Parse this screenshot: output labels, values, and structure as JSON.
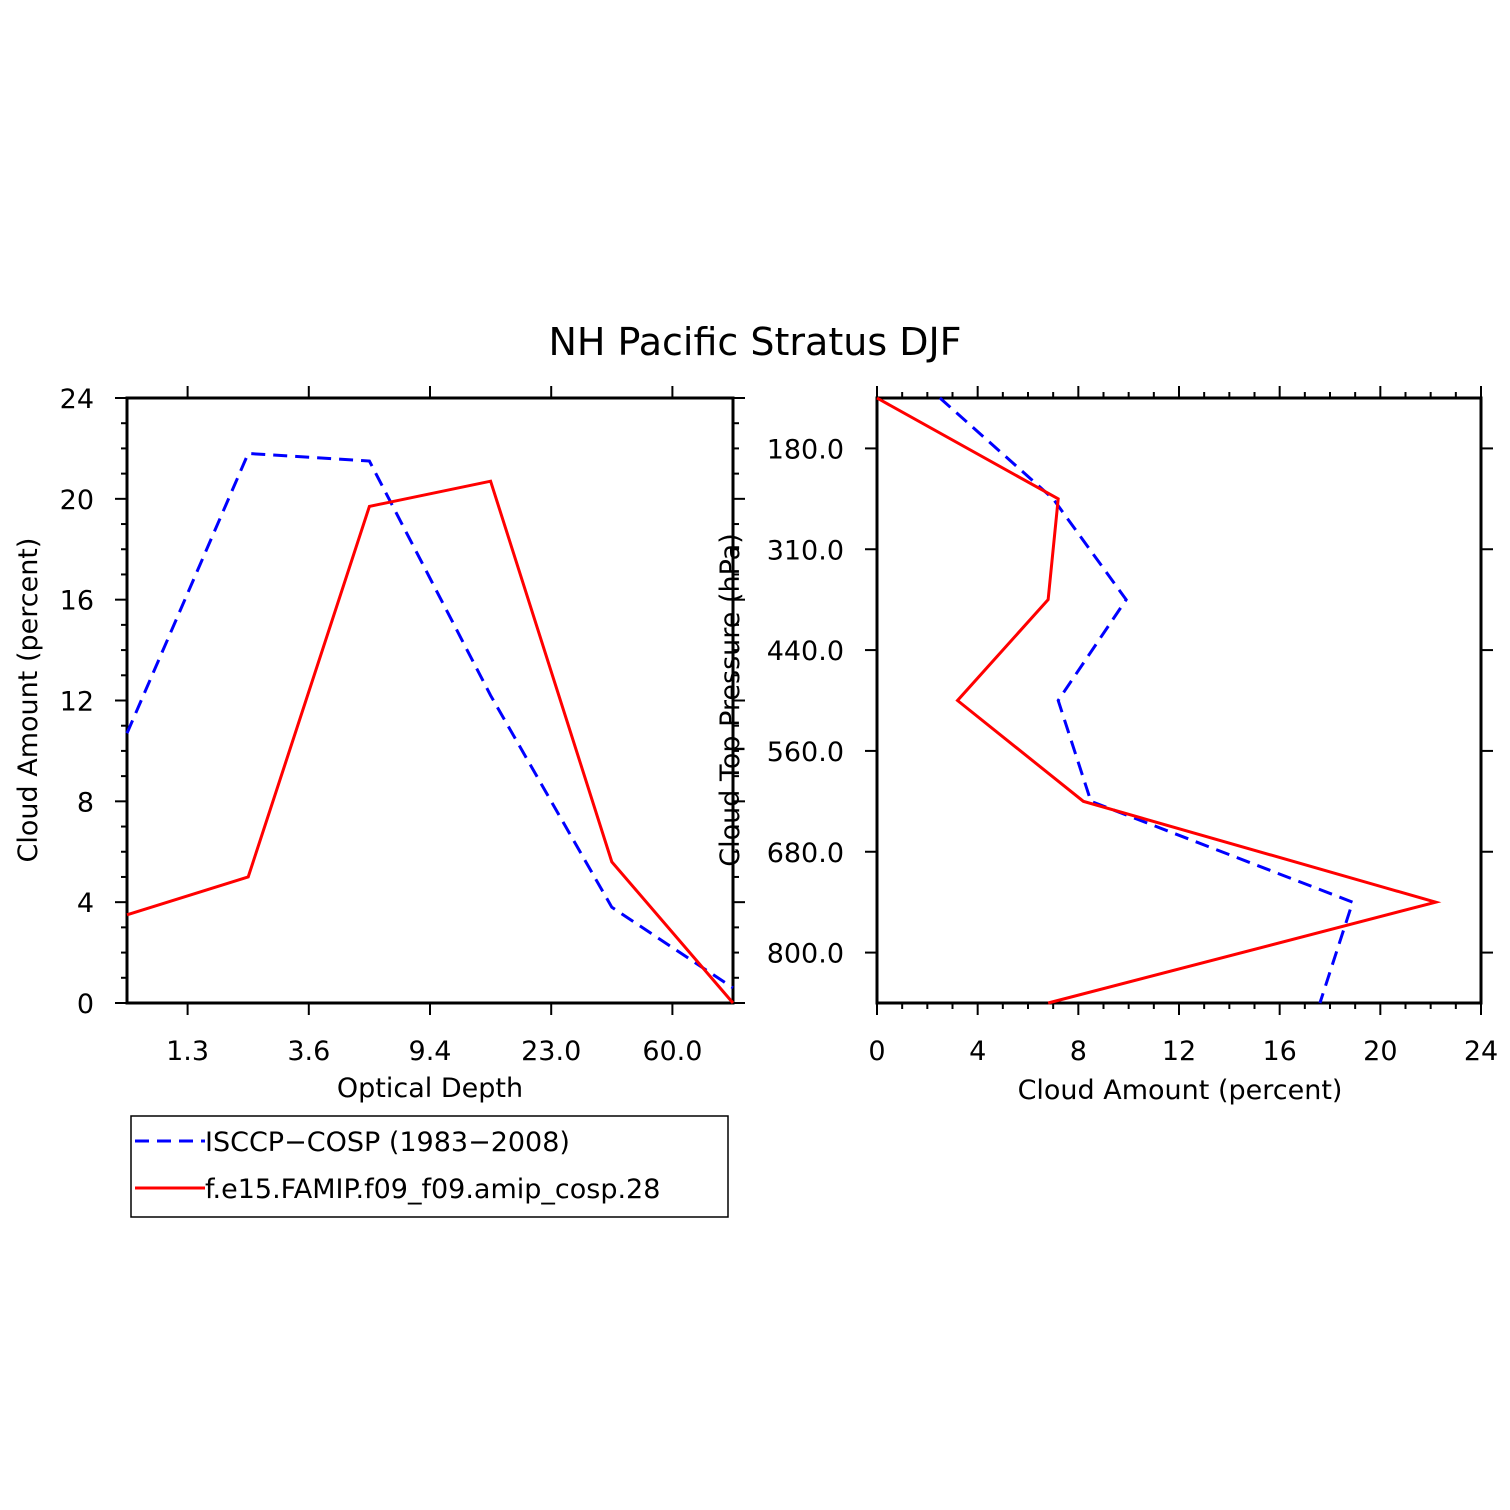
{
  "title": "NH Pacific Stratus DJF",
  "colors": {
    "isccp": "#0000ff",
    "model": "#ff0000",
    "axis": "#000000"
  },
  "legend": {
    "entries": [
      {
        "label": "ISCCP−COSP (1983−2008)",
        "style": "dashed",
        "color": "#0000ff"
      },
      {
        "label": "f.e15.FAMIP.f09_f09.amip_cosp.28",
        "style": "solid",
        "color": "#ff0000"
      }
    ]
  },
  "chart_data": [
    {
      "type": "line",
      "title": "",
      "xlabel": "Optical Depth",
      "ylabel": "Cloud Amount (percent)",
      "x_index": [
        0,
        1,
        2,
        3,
        4,
        5
      ],
      "xtick_labels": [
        "1.3",
        "3.6",
        "9.4",
        "23.0",
        "60.0"
      ],
      "ylim": [
        0,
        24
      ],
      "yticks": [
        0,
        4,
        8,
        12,
        16,
        20,
        24
      ],
      "series": [
        {
          "name": "ISCCP−COSP (1983−2008)",
          "style": "dashed",
          "values": [
            10.7,
            21.8,
            21.5,
            12.2,
            3.8,
            0.6
          ]
        },
        {
          "name": "f.e15.FAMIP.f09_f09.amip_cosp.28",
          "style": "solid",
          "values": [
            3.5,
            5.0,
            19.7,
            20.7,
            5.6,
            0.0
          ]
        }
      ]
    },
    {
      "type": "line",
      "title": "",
      "xlabel": "Cloud Amount (percent)",
      "ylabel": "Cloud Top Pressure (hPa)",
      "xlim": [
        0,
        24
      ],
      "xticks": [
        0,
        4,
        8,
        12,
        16,
        20,
        24
      ],
      "level_index": [
        0,
        1,
        2,
        3,
        4,
        5,
        6
      ],
      "ytick_labels": [
        "180.0",
        "310.0",
        "440.0",
        "560.0",
        "680.0",
        "800.0"
      ],
      "series": [
        {
          "name": "ISCCP−COSP (1983−2008)",
          "style": "dashed",
          "values": [
            2.5,
            7.0,
            9.9,
            7.2,
            8.5,
            18.9,
            17.6
          ]
        },
        {
          "name": "f.e15.FAMIP.f09_f09.amip_cosp.28",
          "style": "solid",
          "values": [
            0.0,
            7.2,
            6.8,
            3.2,
            8.2,
            22.2,
            6.8
          ]
        }
      ]
    }
  ]
}
